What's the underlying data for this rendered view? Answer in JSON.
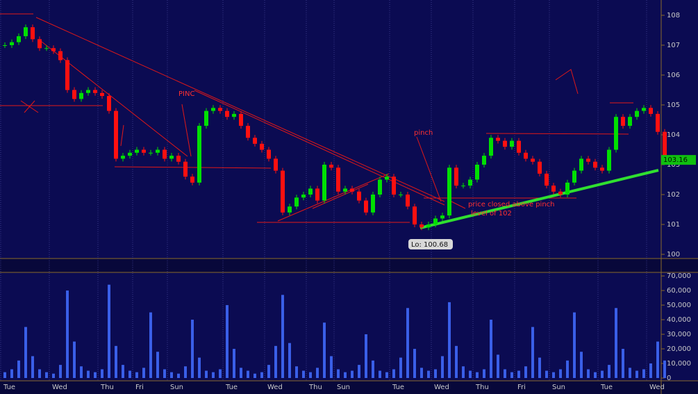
{
  "chart_data": [
    {
      "type": "price",
      "categories": [
        "Tue",
        null,
        null,
        null,
        null,
        null,
        null,
        "Wed",
        null,
        null,
        null,
        null,
        null,
        null,
        "Thu",
        null,
        null,
        null,
        null,
        "Fri",
        null,
        null,
        null,
        null,
        "Sun",
        null,
        null,
        null,
        null,
        null,
        null,
        null,
        "Tue",
        null,
        null,
        null,
        null,
        null,
        "Wed",
        null,
        null,
        null,
        null,
        null,
        "Thu",
        null,
        null,
        null,
        "Sun",
        null,
        null,
        null,
        null,
        null,
        null,
        null,
        "Tue",
        null,
        null,
        null,
        null,
        null,
        "Wed",
        null,
        null,
        null,
        null,
        null,
        "Thu",
        null,
        null,
        null,
        null,
        null,
        "Fri",
        null,
        null,
        null,
        null,
        "Sun",
        null,
        null,
        null,
        null,
        null,
        null,
        "Tue",
        null,
        null,
        null,
        null,
        null,
        null,
        "Wed",
        null,
        null
      ],
      "values": [
        107.0,
        107.1,
        107.3,
        107.6,
        107.2,
        106.9,
        106.9,
        106.8,
        106.5,
        105.5,
        105.2,
        105.4,
        105.5,
        105.4,
        105.3,
        104.8,
        103.2,
        103.3,
        103.4,
        103.5,
        103.4,
        103.4,
        103.5,
        103.2,
        103.3,
        103.1,
        102.6,
        102.4,
        104.3,
        104.8,
        104.9,
        104.8,
        104.6,
        104.7,
        104.3,
        103.9,
        103.7,
        103.5,
        103.2,
        102.8,
        101.4,
        101.6,
        101.9,
        102.0,
        102.2,
        101.8,
        103.0,
        102.9,
        102.1,
        102.2,
        102.1,
        101.8,
        101.4,
        102.0,
        102.5,
        102.6,
        102.0,
        102.0,
        101.6,
        101.0,
        100.9,
        101.0,
        101.2,
        101.3,
        102.9,
        102.3,
        102.3,
        102.5,
        103.0,
        103.3,
        103.9,
        103.8,
        103.6,
        103.8,
        103.4,
        103.2,
        103.1,
        102.7,
        102.3,
        102.1,
        102.0,
        102.4,
        102.8,
        103.2,
        103.1,
        102.9,
        102.8,
        103.5,
        104.6,
        104.3,
        104.6,
        104.8,
        104.9,
        104.7,
        104.1,
        103.16
      ],
      "up_color": "#00e000",
      "down_color": "#ff1010",
      "ylim": [
        99.86,
        108.51
      ],
      "yticks": [
        100,
        101,
        102,
        103,
        104,
        105,
        106,
        107,
        108
      ],
      "last_price": 103.16,
      "annotations": [
        "PINC",
        "pinch",
        "price closed above pinch",
        "level of 102",
        "Lo: 100.68"
      ]
    },
    {
      "type": "volume",
      "values": [
        4000,
        6000,
        12000,
        35000,
        15000,
        6000,
        4000,
        3000,
        9000,
        60000,
        25000,
        8000,
        5000,
        4000,
        6000,
        64000,
        22000,
        9000,
        5000,
        4000,
        7000,
        45000,
        18000,
        6000,
        4000,
        3000,
        8000,
        40000,
        14000,
        5000,
        4000,
        6000,
        50000,
        20000,
        7000,
        5000,
        3000,
        4000,
        9000,
        22000,
        57000,
        24000,
        8000,
        5000,
        4000,
        7000,
        38000,
        15000,
        6000,
        4000,
        5000,
        9000,
        30000,
        12000,
        5000,
        4000,
        6000,
        14000,
        48000,
        20000,
        7000,
        5000,
        6000,
        15000,
        52000,
        22000,
        8000,
        5000,
        4000,
        6000,
        40000,
        16000,
        6000,
        4000,
        5000,
        8000,
        35000,
        14000,
        5000,
        4000,
        6000,
        12000,
        45000,
        18000,
        6000,
        4000,
        5000,
        9000,
        48000,
        20000,
        7000,
        5000,
        6000,
        10000,
        25000,
        12000
      ],
      "color": "#3a5fe8",
      "ylim": [
        0,
        71000
      ],
      "yticks": [
        0,
        {
          "value": 10000,
          "label": "10,000"
        },
        {
          "value": 20000,
          "label": "20,000"
        },
        {
          "value": 30000,
          "label": "30,000"
        },
        {
          "value": 40000,
          "label": "40,000"
        },
        {
          "value": 50000,
          "label": "50,000"
        },
        {
          "value": 60000,
          "label": "60,000"
        },
        {
          "value": 70000,
          "label": "70,000"
        }
      ]
    }
  ]
}
